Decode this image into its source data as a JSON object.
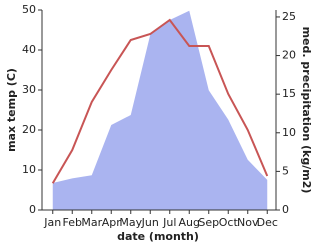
{
  "chart_data": {
    "type": "line-area",
    "x_label": "date (month)",
    "y_label": "max temp (C)",
    "y2_label": "med. precipitation (kg/m2)",
    "categories": [
      "Jan",
      "Feb",
      "Mar",
      "Apr",
      "May",
      "Jun",
      "Jul",
      "Aug",
      "Sep",
      "Oct",
      "Nov",
      "Dec"
    ],
    "series": [
      {
        "name": "max temp",
        "color": "#c85555",
        "values": [
          6.7,
          15,
          27,
          35,
          42.5,
          44,
          47.5,
          41,
          41,
          29,
          20,
          8.5
        ]
      },
      {
        "name": "med. precipitation",
        "color": "#aab4f0",
        "axis": "y2",
        "values": [
          3.5,
          4.1,
          4.5,
          11,
          12.3,
          22.7,
          24.6,
          25.8,
          15.5,
          11.7,
          6.5,
          3.9
        ]
      }
    ],
    "ylim": [
      0,
      50
    ],
    "yticks": [
      0,
      10,
      20,
      30,
      40,
      50
    ],
    "y2lim": [
      0,
      25.9
    ],
    "y2ticks": [
      0,
      5,
      10,
      15,
      20,
      25
    ]
  }
}
